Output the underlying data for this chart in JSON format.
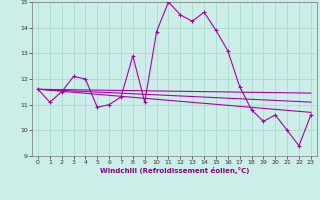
{
  "xlabel": "Windchill (Refroidissement éolien,°C)",
  "bg_color": "#cceee8",
  "grid_color": "#aaddcc",
  "line_color": "#aa00aa",
  "xlim": [
    -0.5,
    23.5
  ],
  "ylim": [
    9,
    15
  ],
  "yticks": [
    9,
    10,
    11,
    12,
    13,
    14,
    15
  ],
  "xticks": [
    0,
    1,
    2,
    3,
    4,
    5,
    6,
    7,
    8,
    9,
    10,
    11,
    12,
    13,
    14,
    15,
    16,
    17,
    18,
    19,
    20,
    21,
    22,
    23
  ],
  "series1_x": [
    0,
    1,
    2,
    3,
    4,
    5,
    6,
    7,
    8,
    9,
    10,
    11,
    12,
    13,
    14,
    15,
    16,
    17,
    18,
    19,
    20,
    21,
    22,
    23
  ],
  "series1_y": [
    11.6,
    11.1,
    11.5,
    12.1,
    12.0,
    10.9,
    11.0,
    11.3,
    12.9,
    11.1,
    13.85,
    15.0,
    14.5,
    14.25,
    14.6,
    13.9,
    13.1,
    11.7,
    10.8,
    10.35,
    10.6,
    10.0,
    9.4,
    10.6
  ],
  "trend1_x": [
    0,
    23
  ],
  "trend1_y": [
    11.6,
    11.45
  ],
  "trend2_x": [
    0,
    23
  ],
  "trend2_y": [
    11.6,
    11.1
  ],
  "trend3_x": [
    0,
    23
  ],
  "trend3_y": [
    11.6,
    10.7
  ]
}
